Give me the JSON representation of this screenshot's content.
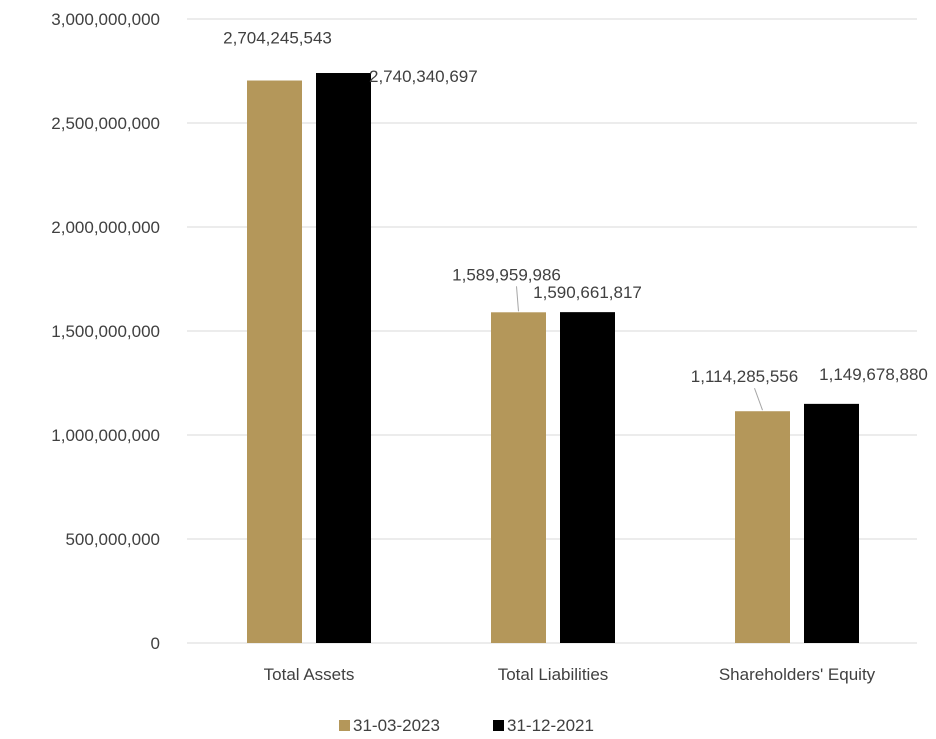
{
  "chart_data": {
    "type": "bar",
    "categories": [
      "Total Assets",
      "Total Liabilities",
      "Shareholders' Equity"
    ],
    "series": [
      {
        "name": "31-03-2023",
        "color": "#b4975a",
        "values": [
          2704245543,
          1589959986,
          1114285556
        ],
        "labels": [
          "2,704,245,543",
          "1,589,959,986",
          "1,114,285,556"
        ]
      },
      {
        "name": "31-12-2021",
        "color": "#000000",
        "values": [
          2740340697,
          1590661817,
          1149678880
        ],
        "labels": [
          "2,740,340,697",
          "1,590,661,817",
          "1,149,678,880"
        ]
      }
    ],
    "ylim": [
      0,
      3000000000
    ],
    "yticks": [
      0,
      500000000,
      1000000000,
      1500000000,
      2000000000,
      2500000000,
      3000000000
    ],
    "ytick_labels": [
      "0",
      "500,000,000",
      "1,000,000,000",
      "1,500,000,000",
      "2,000,000,000",
      "2,500,000,000",
      "3,000,000,000"
    ],
    "grid": true,
    "legend_position": "bottom",
    "title": "",
    "xlabel": "",
    "ylabel": ""
  }
}
